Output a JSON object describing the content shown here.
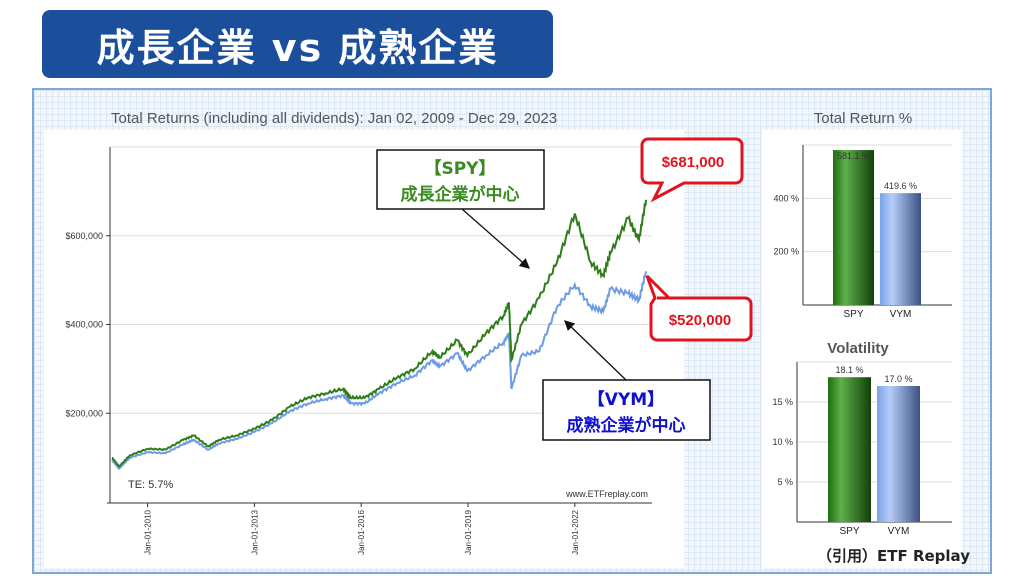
{
  "banner": {
    "title": "成長企業 vs 成熟企業"
  },
  "credit": "（引用）ETF Replay",
  "colors": {
    "spy": "#2e7d1a",
    "vym": "#6f9be6",
    "banner": "#1b4f9c",
    "callout": "#e0141e",
    "vym_label": "#1010d0"
  },
  "annotations": {
    "spy_box": {
      "line1": "【SPY】",
      "line2": "成長企業が中心"
    },
    "vym_box": {
      "line1": "【VYM】",
      "line2": "成熟企業が中心"
    },
    "spy_final": "$681,000",
    "vym_final": "$520,000"
  },
  "chart_data": [
    {
      "type": "line",
      "title": "Total Returns (including all dividends): Jan 02, 2009 - Dec 29, 2023",
      "xlabel": "",
      "ylabel": "",
      "x_ticks": [
        "Jan-01-2010",
        "Jan-01-2013",
        "Jan-01-2016",
        "Jan-01-2019",
        "Jan-01-2022"
      ],
      "x_tick_years": [
        2010,
        2013,
        2016,
        2019,
        2022
      ],
      "y_ticks": [
        "$200,000",
        "$400,000",
        "$600,000"
      ],
      "y_tick_values": [
        200000,
        400000,
        600000
      ],
      "xlim": [
        2009.0,
        2024.0
      ],
      "ylim": [
        0,
        800000
      ],
      "grid": true,
      "annotation_te": "TE:  5.7%",
      "watermark": "www.ETFreplay.com",
      "series": [
        {
          "name": "SPY",
          "x": [
            2009.0,
            2009.2,
            2009.5,
            2010.0,
            2010.5,
            2011.0,
            2011.3,
            2011.7,
            2012.0,
            2012.5,
            2013.0,
            2013.5,
            2014.0,
            2014.5,
            2015.0,
            2015.5,
            2015.7,
            2016.1,
            2016.5,
            2017.0,
            2017.5,
            2018.0,
            2018.2,
            2018.7,
            2018.98,
            2019.5,
            2020.0,
            2020.15,
            2020.22,
            2020.5,
            2021.0,
            2021.5,
            2022.0,
            2022.45,
            2022.8,
            2023.0,
            2023.5,
            2023.8,
            2024.0
          ],
          "values": [
            100000,
            80000,
            105000,
            120000,
            118000,
            140000,
            150000,
            125000,
            140000,
            150000,
            165000,
            185000,
            215000,
            235000,
            245000,
            255000,
            235000,
            235000,
            255000,
            280000,
            300000,
            340000,
            325000,
            365000,
            330000,
            380000,
            420000,
            450000,
            320000,
            400000,
            460000,
            540000,
            650000,
            540000,
            510000,
            560000,
            640000,
            590000,
            681000
          ]
        },
        {
          "name": "VYM",
          "x": [
            2009.0,
            2009.2,
            2009.5,
            2010.0,
            2010.5,
            2011.0,
            2011.3,
            2011.7,
            2012.0,
            2012.5,
            2013.0,
            2013.5,
            2014.0,
            2014.5,
            2015.0,
            2015.5,
            2015.7,
            2016.1,
            2016.5,
            2017.0,
            2017.5,
            2018.0,
            2018.2,
            2018.7,
            2018.98,
            2019.5,
            2020.0,
            2020.15,
            2020.22,
            2020.5,
            2021.0,
            2021.5,
            2022.0,
            2022.45,
            2022.8,
            2023.0,
            2023.5,
            2023.8,
            2024.0
          ],
          "values": [
            95000,
            75000,
            100000,
            112000,
            110000,
            130000,
            140000,
            118000,
            132000,
            142000,
            158000,
            178000,
            205000,
            222000,
            232000,
            240000,
            222000,
            222000,
            245000,
            268000,
            285000,
            320000,
            305000,
            335000,
            295000,
            330000,
            360000,
            380000,
            255000,
            330000,
            340000,
            440000,
            490000,
            440000,
            430000,
            480000,
            470000,
            455000,
            520000
          ]
        }
      ]
    },
    {
      "type": "bar",
      "title": "Total Return %",
      "categories": [
        "SPY",
        "VYM"
      ],
      "values": [
        581.1,
        419.6
      ],
      "data_labels": [
        "581.1 %",
        "419.6 %"
      ],
      "y_ticks": [
        "200 %",
        "400 %"
      ],
      "y_tick_values": [
        200,
        400
      ],
      "ylim": [
        0,
        600
      ],
      "grid": true
    },
    {
      "type": "bar",
      "title": "Volatility",
      "categories": [
        "SPY",
        "VYM"
      ],
      "values": [
        18.1,
        17.0
      ],
      "data_labels": [
        "18.1 %",
        "17.0 %"
      ],
      "y_ticks": [
        "5 %",
        "10 %",
        "15 %"
      ],
      "y_tick_values": [
        5,
        10,
        15
      ],
      "ylim": [
        0,
        20
      ],
      "grid": true
    }
  ]
}
